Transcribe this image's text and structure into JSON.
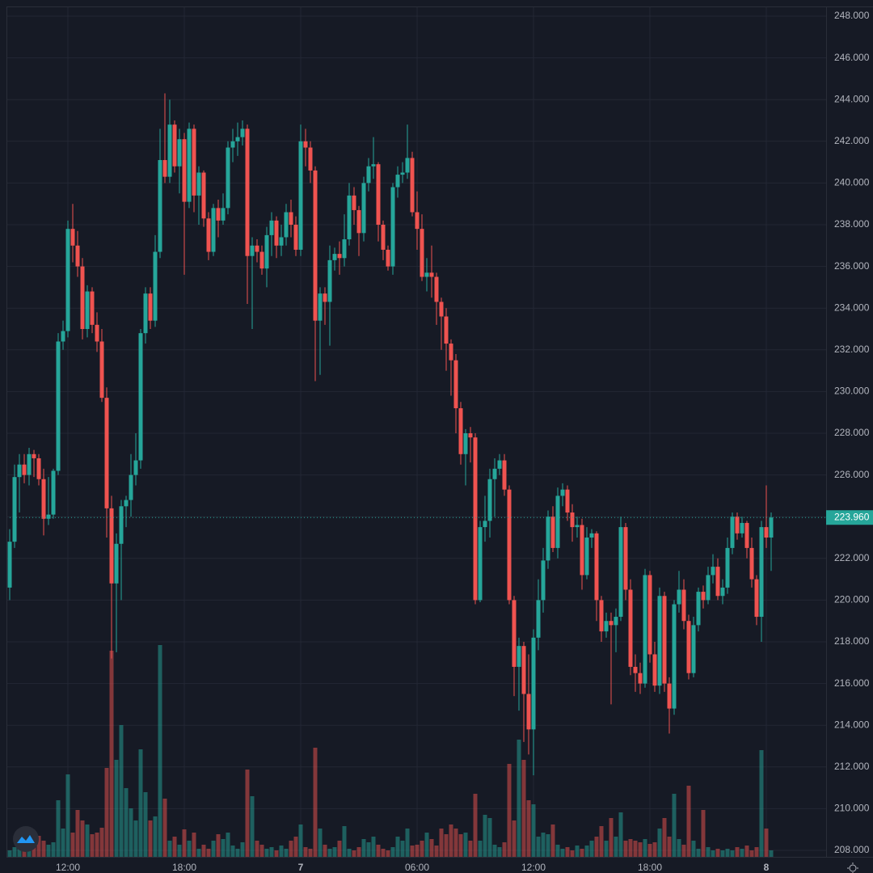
{
  "chart_data": {
    "type": "candlestick",
    "up_color": "#26a69a",
    "down_color": "#ef5350",
    "grid": true,
    "ylim": [
      208,
      248
    ],
    "yticks": [
      {
        "value": 208,
        "label": "208.000"
      },
      {
        "value": 210,
        "label": "210.000"
      },
      {
        "value": 212,
        "label": "212.000"
      },
      {
        "value": 214,
        "label": "214.000"
      },
      {
        "value": 216,
        "label": "216.000"
      },
      {
        "value": 218,
        "label": "218.000"
      },
      {
        "value": 220,
        "label": "220.000"
      },
      {
        "value": 222,
        "label": "222.000"
      },
      {
        "value": 224,
        "label": "224.000"
      },
      {
        "value": 226,
        "label": "226.000"
      },
      {
        "value": 228,
        "label": "228.000"
      },
      {
        "value": 230,
        "label": "230.000"
      },
      {
        "value": 232,
        "label": "232.000"
      },
      {
        "value": 234,
        "label": "234.000"
      },
      {
        "value": 236,
        "label": "236.000"
      },
      {
        "value": 238,
        "label": "238.000"
      },
      {
        "value": 240,
        "label": "240.000"
      },
      {
        "value": 242,
        "label": "242.000"
      },
      {
        "value": 244,
        "label": "244.000"
      },
      {
        "value": 246,
        "label": "246.000"
      },
      {
        "value": 248,
        "label": "248.000"
      }
    ],
    "xticks": [
      {
        "value": 12,
        "label": "12:00"
      },
      {
        "value": 36,
        "label": "18:00"
      },
      {
        "value": 60,
        "label": "7"
      },
      {
        "value": 84,
        "label": "06:00"
      },
      {
        "value": 108,
        "label": "12:00"
      },
      {
        "value": 132,
        "label": "18:00"
      },
      {
        "value": 156,
        "label": "8"
      }
    ],
    "last_price": {
      "value": 223.96,
      "label": "223.960"
    },
    "ohlc": [
      [
        220.6,
        223.4,
        220.0,
        222.8
      ],
      [
        222.8,
        226.5,
        222.5,
        225.9
      ],
      [
        225.9,
        227.0,
        224.2,
        226.5
      ],
      [
        226.5,
        227.0,
        225.6,
        226.0
      ],
      [
        226.0,
        227.3,
        225.5,
        227.0
      ],
      [
        227.0,
        227.2,
        225.9,
        226.8
      ],
      [
        226.8,
        227.0,
        225.5,
        225.8
      ],
      [
        225.8,
        226.3,
        223.1,
        223.9
      ],
      [
        223.9,
        225.9,
        223.6,
        224.1
      ],
      [
        224.1,
        226.3,
        223.9,
        226.2
      ],
      [
        226.2,
        232.8,
        226.0,
        232.4
      ],
      [
        232.4,
        233.4,
        232.0,
        232.9
      ],
      [
        232.9,
        238.2,
        232.6,
        237.8
      ],
      [
        237.8,
        239.0,
        236.2,
        237.0
      ],
      [
        237.0,
        237.7,
        235.5,
        236.0
      ],
      [
        236.0,
        236.4,
        232.5,
        233.0
      ],
      [
        233.0,
        235.1,
        232.6,
        234.8
      ],
      [
        234.8,
        235.0,
        232.8,
        233.2
      ],
      [
        233.2,
        233.8,
        231.9,
        232.4
      ],
      [
        232.4,
        233.0,
        229.5,
        229.7
      ],
      [
        229.7,
        230.2,
        223.0,
        224.4
      ],
      [
        224.4,
        225.0,
        217.2,
        220.8
      ],
      [
        220.8,
        223.2,
        217.5,
        222.7
      ],
      [
        222.7,
        224.8,
        220.0,
        224.5
      ],
      [
        224.5,
        225.0,
        223.5,
        224.8
      ],
      [
        224.8,
        227.0,
        224.0,
        226.0
      ],
      [
        226.0,
        228.0,
        225.5,
        226.7
      ],
      [
        226.7,
        233.0,
        226.3,
        232.8
      ],
      [
        232.8,
        235.0,
        232.3,
        234.7
      ],
      [
        234.7,
        235.0,
        233.0,
        233.4
      ],
      [
        233.4,
        237.5,
        233.1,
        236.7
      ],
      [
        236.7,
        242.6,
        236.4,
        241.1
      ],
      [
        241.1,
        244.3,
        240.0,
        240.3
      ],
      [
        240.3,
        244.0,
        240.0,
        242.8
      ],
      [
        242.8,
        243.0,
        240.5,
        240.8
      ],
      [
        240.8,
        242.6,
        239.5,
        242.1
      ],
      [
        242.1,
        242.4,
        235.6,
        239.1
      ],
      [
        239.1,
        242.9,
        238.8,
        242.6
      ],
      [
        242.6,
        242.8,
        238.6,
        239.4
      ],
      [
        239.4,
        240.8,
        238.0,
        240.5
      ],
      [
        240.5,
        240.6,
        237.9,
        238.3
      ],
      [
        238.3,
        238.6,
        236.3,
        236.7
      ],
      [
        236.7,
        239.0,
        236.5,
        238.8
      ],
      [
        238.8,
        239.2,
        237.4,
        238.2
      ],
      [
        238.2,
        239.5,
        238.0,
        238.8
      ],
      [
        238.8,
        242.0,
        238.5,
        241.7
      ],
      [
        241.7,
        242.6,
        241.0,
        242.0
      ],
      [
        242.0,
        242.9,
        241.3,
        242.2
      ],
      [
        242.2,
        243.0,
        241.8,
        242.6
      ],
      [
        242.6,
        242.8,
        234.2,
        236.5
      ],
      [
        236.5,
        237.4,
        233.0,
        237.0
      ],
      [
        237.0,
        237.3,
        236.2,
        236.7
      ],
      [
        236.7,
        237.0,
        235.6,
        235.9
      ],
      [
        235.9,
        237.9,
        235.0,
        237.5
      ],
      [
        237.5,
        238.6,
        236.5,
        238.2
      ],
      [
        238.2,
        238.4,
        236.4,
        237.0
      ],
      [
        237.0,
        238.0,
        236.5,
        237.4
      ],
      [
        237.4,
        239.0,
        237.0,
        238.6
      ],
      [
        238.6,
        239.2,
        237.4,
        238.0
      ],
      [
        238.0,
        238.4,
        236.5,
        236.8
      ],
      [
        236.8,
        242.8,
        236.5,
        242.0
      ],
      [
        242.0,
        242.6,
        240.8,
        241.7
      ],
      [
        241.7,
        242.0,
        240.0,
        240.6
      ],
      [
        240.6,
        240.8,
        230.5,
        233.4
      ],
      [
        233.4,
        235.0,
        230.8,
        234.7
      ],
      [
        234.7,
        235.0,
        233.2,
        234.3
      ],
      [
        234.3,
        237.0,
        232.2,
        236.3
      ],
      [
        236.3,
        236.9,
        235.8,
        236.6
      ],
      [
        236.6,
        237.2,
        235.6,
        236.4
      ],
      [
        236.4,
        238.5,
        236.0,
        237.3
      ],
      [
        237.3,
        240.0,
        237.0,
        239.4
      ],
      [
        239.4,
        239.8,
        238.0,
        238.7
      ],
      [
        238.7,
        238.9,
        236.5,
        237.6
      ],
      [
        237.6,
        240.3,
        237.2,
        240.0
      ],
      [
        240.0,
        241.2,
        239.6,
        240.8
      ],
      [
        240.8,
        242.2,
        240.2,
        240.9
      ],
      [
        240.9,
        241.0,
        237.2,
        238.0
      ],
      [
        238.0,
        238.2,
        236.3,
        236.8
      ],
      [
        236.8,
        237.0,
        235.8,
        236.0
      ],
      [
        236.0,
        240.0,
        235.6,
        239.8
      ],
      [
        239.8,
        240.8,
        239.3,
        240.4
      ],
      [
        240.4,
        241.0,
        240.0,
        240.5
      ],
      [
        240.5,
        242.8,
        240.2,
        241.2
      ],
      [
        241.2,
        241.5,
        238.4,
        238.6
      ],
      [
        238.6,
        239.6,
        236.8,
        237.8
      ],
      [
        237.8,
        238.5,
        235.3,
        235.5
      ],
      [
        235.5,
        236.4,
        234.8,
        235.7
      ],
      [
        235.7,
        237.0,
        234.5,
        235.5
      ],
      [
        235.5,
        235.7,
        233.2,
        234.3
      ],
      [
        234.3,
        234.5,
        232.0,
        233.6
      ],
      [
        233.6,
        234.0,
        231.0,
        232.3
      ],
      [
        232.3,
        232.5,
        229.8,
        231.5
      ],
      [
        231.5,
        231.8,
        228.0,
        229.2
      ],
      [
        229.2,
        229.5,
        226.5,
        227.0
      ],
      [
        227.0,
        228.2,
        225.5,
        228.0
      ],
      [
        228.0,
        228.3,
        226.6,
        227.8
      ],
      [
        227.8,
        228.0,
        219.8,
        220.0
      ],
      [
        220.0,
        223.8,
        219.9,
        223.5
      ],
      [
        223.5,
        225.0,
        222.8,
        223.8
      ],
      [
        223.8,
        226.3,
        223.0,
        225.8
      ],
      [
        225.8,
        226.8,
        224.0,
        226.3
      ],
      [
        226.3,
        227.0,
        226.0,
        226.7
      ],
      [
        226.7,
        227.0,
        225.0,
        225.3
      ],
      [
        225.3,
        225.5,
        219.8,
        220.0
      ],
      [
        220.0,
        220.2,
        215.4,
        216.8
      ],
      [
        216.8,
        218.2,
        214.7,
        217.8
      ],
      [
        217.8,
        218.0,
        213.2,
        215.5
      ],
      [
        215.5,
        217.4,
        212.6,
        213.8
      ],
      [
        213.8,
        218.6,
        211.6,
        218.2
      ],
      [
        218.2,
        221.0,
        217.6,
        220.0
      ],
      [
        220.0,
        222.5,
        219.4,
        221.9
      ],
      [
        221.9,
        224.3,
        221.5,
        224.0
      ],
      [
        224.0,
        224.5,
        222.3,
        222.5
      ],
      [
        222.5,
        225.4,
        222.0,
        225.0
      ],
      [
        225.0,
        225.6,
        224.5,
        225.3
      ],
      [
        225.3,
        225.5,
        223.8,
        224.2
      ],
      [
        224.2,
        224.6,
        222.8,
        223.5
      ],
      [
        223.5,
        224.0,
        223.0,
        223.6
      ],
      [
        223.6,
        223.9,
        220.5,
        221.2
      ],
      [
        221.2,
        223.5,
        221.0,
        223.0
      ],
      [
        223.0,
        223.4,
        222.5,
        223.2
      ],
      [
        223.2,
        223.3,
        219.0,
        220.0
      ],
      [
        220.0,
        220.2,
        218.0,
        218.5
      ],
      [
        218.5,
        219.4,
        218.2,
        219.0
      ],
      [
        219.0,
        219.4,
        215.0,
        218.8
      ],
      [
        218.8,
        219.6,
        217.5,
        219.2
      ],
      [
        219.2,
        224.0,
        219.0,
        223.5
      ],
      [
        223.5,
        223.7,
        220.0,
        220.5
      ],
      [
        220.5,
        221.0,
        216.4,
        216.8
      ],
      [
        216.8,
        217.4,
        215.6,
        216.5
      ],
      [
        216.5,
        217.0,
        215.5,
        216.0
      ],
      [
        216.0,
        221.5,
        215.8,
        221.2
      ],
      [
        221.2,
        221.4,
        217.0,
        217.4
      ],
      [
        217.4,
        218.0,
        215.6,
        215.9
      ],
      [
        215.9,
        220.6,
        215.5,
        220.2
      ],
      [
        220.2,
        220.4,
        215.6,
        216.0
      ],
      [
        216.0,
        216.3,
        213.6,
        214.8
      ],
      [
        214.8,
        220.0,
        214.5,
        219.8
      ],
      [
        219.8,
        221.4,
        219.4,
        220.5
      ],
      [
        220.5,
        221.0,
        218.6,
        219.0
      ],
      [
        219.0,
        219.3,
        216.2,
        216.5
      ],
      [
        216.5,
        219.2,
        216.3,
        218.8
      ],
      [
        218.8,
        220.6,
        218.5,
        220.4
      ],
      [
        220.4,
        220.7,
        219.6,
        220.0
      ],
      [
        220.0,
        221.6,
        219.8,
        221.2
      ],
      [
        221.2,
        222.2,
        220.8,
        221.6
      ],
      [
        221.6,
        222.0,
        220.0,
        220.2
      ],
      [
        220.2,
        221.0,
        219.8,
        220.6
      ],
      [
        220.6,
        223.0,
        220.3,
        222.5
      ],
      [
        222.5,
        224.2,
        222.2,
        224.0
      ],
      [
        224.0,
        224.2,
        222.9,
        223.2
      ],
      [
        223.2,
        224.0,
        223.0,
        223.7
      ],
      [
        223.7,
        223.8,
        222.0,
        222.5
      ],
      [
        222.5,
        223.0,
        220.6,
        221.0
      ],
      [
        221.0,
        221.2,
        218.8,
        219.2
      ],
      [
        219.2,
        223.8,
        218.0,
        223.5
      ],
      [
        223.5,
        225.5,
        222.5,
        223.0
      ],
      [
        223.0,
        224.2,
        221.4,
        223.96
      ]
    ],
    "volume": [
      8,
      12,
      22,
      28,
      18,
      30,
      26,
      20,
      15,
      18,
      70,
      35,
      102,
      30,
      58,
      45,
      40,
      28,
      30,
      36,
      110,
      255,
      120,
      163,
      85,
      60,
      45,
      133,
      80,
      45,
      50,
      262,
      72,
      20,
      25,
      15,
      34,
      20,
      30,
      10,
      15,
      10,
      20,
      28,
      22,
      30,
      14,
      10,
      18,
      108,
      75,
      20,
      15,
      10,
      12,
      8,
      14,
      10,
      20,
      25,
      40,
      12,
      10,
      135,
      35,
      15,
      10,
      12,
      20,
      38,
      10,
      8,
      12,
      22,
      18,
      25,
      15,
      10,
      8,
      12,
      25,
      20,
      35,
      14,
      15,
      20,
      30,
      22,
      14,
      35,
      28,
      40,
      35,
      28,
      30,
      20,
      78,
      20,
      52,
      48,
      15,
      12,
      18,
      115,
      45,
      145,
      120,
      70,
      65,
      25,
      30,
      28,
      40,
      15,
      10,
      12,
      8,
      14,
      10,
      14,
      20,
      25,
      38,
      20,
      48,
      25,
      55,
      20,
      22,
      20,
      18,
      22,
      16,
      18,
      35,
      48,
      25,
      78,
      22,
      15,
      88,
      20,
      10,
      58,
      12,
      8,
      10,
      8,
      10,
      8,
      12,
      10,
      14,
      8,
      12,
      132,
      35,
      8
    ]
  }
}
